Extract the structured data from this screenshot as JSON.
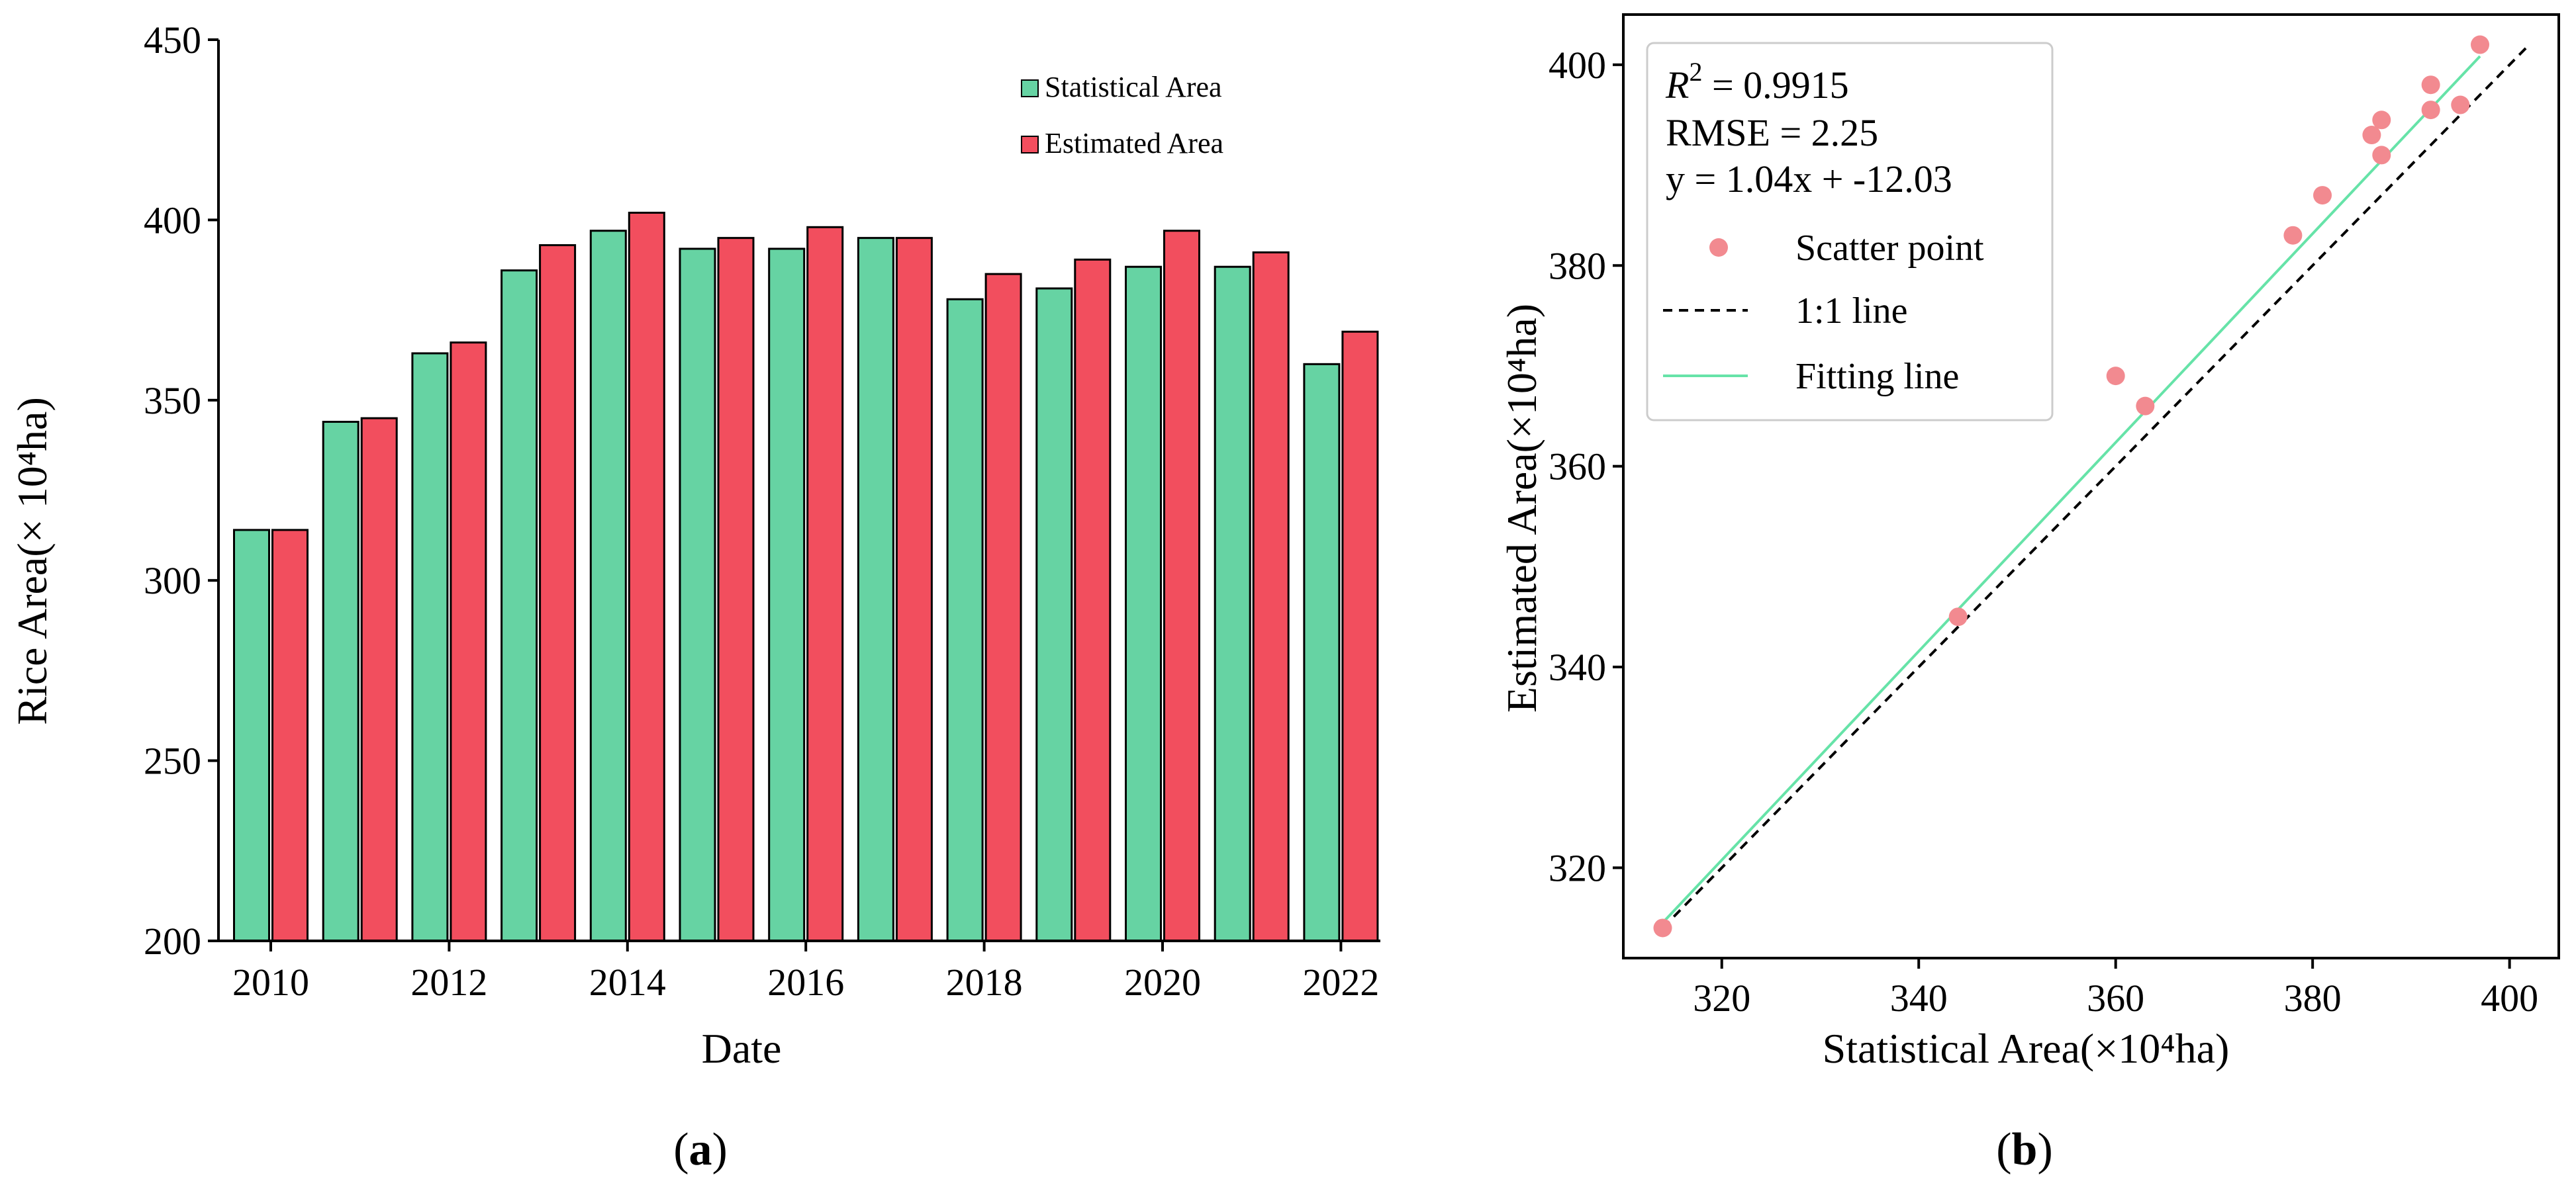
{
  "chart_data": [
    {
      "type": "bar",
      "panel": "a",
      "panel_label": {
        "open": "(",
        "letter": "a",
        "close": ")"
      },
      "xlabel": "Date",
      "ylabel": "Rice Area(× 10⁴ha)",
      "ylim": [
        200,
        450
      ],
      "yticks": [
        200,
        250,
        300,
        350,
        400,
        450
      ],
      "xtick_labels": [
        "2010",
        "2012",
        "2014",
        "2016",
        "2018",
        "2020",
        "2022"
      ],
      "categories": [
        "2010",
        "2011",
        "2012",
        "2013",
        "2014",
        "2015",
        "2016",
        "2017",
        "2018",
        "2019",
        "2020",
        "2021",
        "2022"
      ],
      "series": [
        {
          "name": "Statistical Area",
          "color": "#66d3a3",
          "values": [
            314,
            344,
            363,
            386,
            397,
            392,
            392,
            395,
            378,
            381,
            387,
            387,
            360
          ]
        },
        {
          "name": "Estimated Area",
          "color": "#f24e5e",
          "values": [
            314,
            345,
            366,
            393,
            402,
            395,
            398,
            395,
            385,
            389,
            397,
            391,
            369
          ]
        }
      ],
      "legend_position": "top-right"
    },
    {
      "type": "scatter",
      "panel": "b",
      "panel_label": {
        "open": "(",
        "letter": "b",
        "close": ")"
      },
      "xlabel": "Statistical Area(×10⁴ha)",
      "ylabel": "Estimated Area(×10⁴ha)",
      "xlim": [
        310,
        405
      ],
      "ylim": [
        311,
        405
      ],
      "xticks": [
        320,
        340,
        360,
        380,
        400
      ],
      "yticks": [
        320,
        340,
        360,
        380,
        400
      ],
      "points": {
        "name": "Scatter point",
        "color": "#f28a90",
        "x": [
          314,
          344,
          360,
          363,
          378,
          381,
          386,
          387,
          387,
          392,
          392,
          395,
          397
        ],
        "y": [
          314,
          345,
          369,
          366,
          383,
          387,
          393,
          391,
          394.5,
          395.5,
          398,
          396,
          402
        ]
      },
      "one_to_one_line": {
        "name": "1:1 line",
        "color": "#000000",
        "range": [
          314,
          402
        ]
      },
      "fitting_line": {
        "name": "Fitting line",
        "color": "#66e3a8",
        "slope": 1.04,
        "intercept": -12.03,
        "range": [
          314,
          397
        ]
      },
      "stats": {
        "r2_symbol": "R",
        "r2_exponent": "2",
        "r2_value": " = 0.9915",
        "rmse": "RMSE = 2.25",
        "equation": "y = 1.04x + -12.03"
      },
      "legend_position": "top-left"
    }
  ]
}
